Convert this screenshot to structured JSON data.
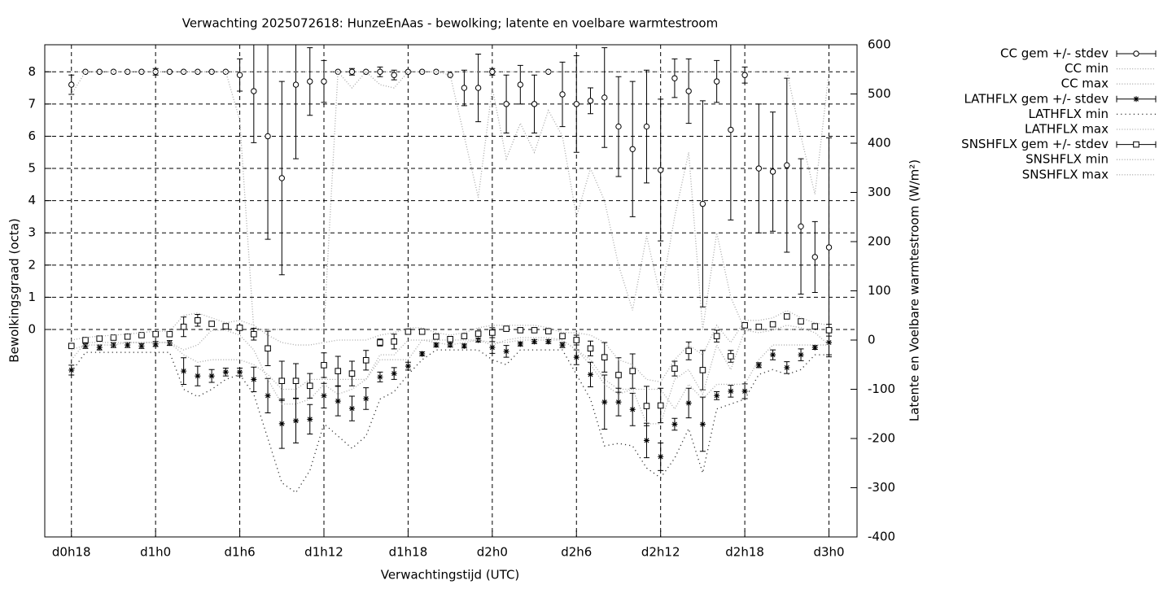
{
  "chart_data": {
    "type": "errorbar",
    "title": "Verwachting 2025072618: HunzeEnAas - bewolking; latente en voelbare warmtestroom",
    "xlabel": "Verwachtingstijd (UTC)",
    "ylabel": "Bewolkingsgraad (octa)",
    "y2label": "Latente en Voelbare warmtestroom (W/m²)",
    "grid": true,
    "legend": "outside-right",
    "xlim": [
      16.1,
      74
    ],
    "ylim": [
      -6.44,
      8.84
    ],
    "y2lim": [
      -400,
      600
    ],
    "xticks": [
      {
        "value": 18,
        "label": "d0h18"
      },
      {
        "value": 24,
        "label": "d1h0"
      },
      {
        "value": 30,
        "label": "d1h6"
      },
      {
        "value": 36,
        "label": "d1h12"
      },
      {
        "value": 42,
        "label": "d1h18"
      },
      {
        "value": 48,
        "label": "d2h0"
      },
      {
        "value": 54,
        "label": "d2h6"
      },
      {
        "value": 60,
        "label": "d2h12"
      },
      {
        "value": 66,
        "label": "d2h18"
      },
      {
        "value": 72,
        "label": "d3h0"
      }
    ],
    "yticks": [
      0,
      1,
      2,
      3,
      4,
      5,
      6,
      7,
      8
    ],
    "y2ticks": [
      -400,
      -300,
      -200,
      -100,
      0,
      100,
      200,
      300,
      400,
      500,
      600
    ],
    "x": [
      18,
      19,
      20,
      21,
      22,
      23,
      24,
      25,
      26,
      27,
      28,
      29,
      30,
      31,
      32,
      33,
      34,
      35,
      36,
      37,
      38,
      39,
      40,
      41,
      42,
      43,
      44,
      45,
      46,
      47,
      48,
      49,
      50,
      51,
      52,
      53,
      54,
      55,
      56,
      57,
      58,
      59,
      60,
      61,
      62,
      63,
      64,
      65,
      66,
      67,
      68,
      69,
      70,
      71,
      72
    ],
    "series": [
      {
        "name": "CC gem +/- stdev",
        "axis": "y",
        "style": "errorbar",
        "marker": "circle",
        "color": "#000000",
        "values": [
          7.6,
          8,
          8,
          8,
          8,
          8,
          8,
          8,
          8,
          8,
          8,
          8,
          7.9,
          7.4,
          6.0,
          4.7,
          7.6,
          7.7,
          7.7,
          8,
          8,
          8,
          8,
          7.9,
          8,
          8,
          8,
          7.9,
          7.5,
          7.5,
          8,
          7.0,
          7.6,
          7.0,
          8,
          7.3,
          7.0,
          7.1,
          7.2,
          6.3,
          5.6,
          6.3,
          4.95,
          7.8,
          7.4,
          3.9,
          7.7,
          6.2,
          7.9,
          5.0,
          4.9,
          5.1,
          3.2,
          2.25,
          2.55
        ],
        "errors": [
          0.3,
          0,
          0,
          0,
          0,
          0,
          0.1,
          0,
          0,
          0,
          0,
          0,
          0.5,
          1.6,
          3.2,
          3.0,
          2.3,
          1.05,
          0.65,
          0,
          0.1,
          0,
          0.15,
          0.15,
          0,
          0,
          0,
          0,
          0.55,
          1.05,
          0.1,
          0.9,
          0.6,
          0.9,
          0,
          1.0,
          1.5,
          0.4,
          1.55,
          1.55,
          2.1,
          1.75,
          2.2,
          0.6,
          1.0,
          3.2,
          0.65,
          2.8,
          0.25,
          2.0,
          1.85,
          2.7,
          2.1,
          1.1,
          3.4
        ]
      },
      {
        "name": "CC min",
        "axis": "y",
        "style": "dotted",
        "color": "#aaaaaa",
        "values": [
          7.3,
          8,
          8,
          8,
          8,
          8,
          8,
          8,
          8,
          8,
          8,
          8,
          6.5,
          0,
          0,
          0,
          0,
          0,
          0,
          8,
          7.5,
          8,
          7.6,
          7.5,
          8,
          8,
          8,
          7.9,
          6.0,
          4.1,
          7.5,
          5.3,
          6.4,
          5.5,
          6.8,
          6.0,
          3.5,
          5.0,
          4.0,
          2.0,
          0.6,
          2.9,
          1.0,
          3.5,
          5.5,
          0,
          3.0,
          1.0,
          0,
          0,
          0,
          0,
          0,
          0,
          0
        ]
      },
      {
        "name": "CC max",
        "axis": "y",
        "style": "dotted",
        "color": "#aaaaaa",
        "values": [
          8,
          8,
          8,
          8,
          8,
          8,
          8,
          8,
          8,
          8,
          8,
          8,
          8,
          8,
          8,
          8,
          8,
          8,
          8,
          8,
          8,
          8,
          8,
          8,
          8,
          8,
          8,
          8,
          8,
          8,
          8,
          8,
          8,
          8,
          8,
          8,
          8,
          8,
          8,
          8,
          8,
          8,
          8,
          8,
          8,
          8,
          8,
          8,
          8,
          8,
          8,
          8,
          6,
          4.2,
          8
        ]
      },
      {
        "name": "LATHFLX gem +/- stdev",
        "axis": "y2",
        "style": "errorbar",
        "marker": "star",
        "color": "#000000",
        "values": [
          -61,
          -12,
          -15,
          -10,
          -10,
          -12,
          -8,
          -6,
          -63,
          -73,
          -73,
          -65,
          -65,
          -80,
          -113,
          -170,
          -164,
          -161,
          -113,
          -124,
          -139,
          -119,
          -75,
          -68,
          -53,
          -28,
          -10,
          -10,
          -12,
          0,
          -15,
          -23,
          -8,
          -3,
          -3,
          -10,
          -35,
          -70,
          -126,
          -126,
          -141,
          -204,
          -237,
          -171,
          -128,
          -171,
          -113,
          -104,
          -104,
          -51,
          -30,
          -56,
          -30,
          -15,
          -5
        ],
        "errors": [
          10,
          5,
          5,
          5,
          5,
          5,
          5,
          5,
          27,
          20,
          13,
          8,
          8,
          25,
          35,
          50,
          45,
          30,
          25,
          30,
          25,
          22,
          10,
          12,
          8,
          4,
          4,
          4,
          4,
          4,
          12,
          12,
          4,
          4,
          4,
          5,
          15,
          25,
          55,
          28,
          33,
          35,
          28,
          12,
          30,
          55,
          8,
          12,
          15,
          5,
          10,
          12,
          12,
          4,
          25
        ]
      },
      {
        "name": "LATHFLX min",
        "axis": "y2",
        "style": "dotted",
        "color": "#333333",
        "values": [
          -65,
          -25,
          -25,
          -25,
          -25,
          -25,
          -25,
          -25,
          -100,
          -115,
          -100,
          -80,
          -70,
          -110,
          -200,
          -290,
          -310,
          -265,
          -170,
          -195,
          -220,
          -195,
          -120,
          -105,
          -70,
          -40,
          -20,
          -20,
          -20,
          -20,
          -40,
          -50,
          -20,
          -20,
          -20,
          -20,
          -70,
          -120,
          -215,
          -210,
          -215,
          -260,
          -280,
          -240,
          -180,
          -270,
          -140,
          -130,
          -120,
          -70,
          -60,
          -70,
          -60,
          -30,
          -30
        ]
      },
      {
        "name": "LATHFLX max",
        "axis": "y2",
        "style": "dotted",
        "color": "#aaaaaa",
        "values": [
          -40,
          -5,
          -5,
          -5,
          -5,
          -5,
          -5,
          -5,
          -30,
          -45,
          -40,
          -40,
          -40,
          -50,
          -70,
          -100,
          -100,
          -80,
          -80,
          -80,
          -80,
          -80,
          -40,
          -40,
          -40,
          0,
          0,
          0,
          0,
          0,
          -5,
          -5,
          0,
          0,
          0,
          0,
          -20,
          -40,
          -80,
          -100,
          -100,
          -100,
          -100,
          -140,
          -90,
          -120,
          -90,
          -90,
          -90,
          -40,
          -10,
          -10,
          -10,
          -10,
          -10
        ]
      },
      {
        "name": "SNSHFLX gem +/- stdev",
        "axis": "y2",
        "style": "errorbar",
        "marker": "square",
        "color": "#000000",
        "values": [
          -12,
          0,
          3,
          5,
          7,
          10,
          12,
          12,
          27,
          40,
          33,
          28,
          25,
          12,
          -17,
          -83,
          -83,
          -93,
          -51,
          -63,
          -68,
          -41,
          -5,
          -3,
          17,
          17,
          7,
          2,
          8,
          13,
          15,
          23,
          20,
          20,
          18,
          8,
          0,
          -17,
          -35,
          -71,
          -63,
          -134,
          -133,
          -58,
          -22,
          -61,
          8,
          -33,
          30,
          27,
          32,
          48,
          38,
          28,
          20
        ],
        "errors": [
          5,
          3,
          3,
          3,
          3,
          3,
          3,
          3,
          20,
          12,
          5,
          3,
          3,
          12,
          35,
          40,
          35,
          25,
          25,
          30,
          25,
          20,
          7,
          15,
          5,
          3,
          3,
          3,
          3,
          3,
          10,
          5,
          3,
          3,
          3,
          3,
          10,
          15,
          30,
          35,
          35,
          40,
          35,
          15,
          18,
          40,
          12,
          12,
          5,
          3,
          3,
          3,
          5,
          3,
          12
        ]
      },
      {
        "name": "SNSHFLX min",
        "axis": "y2",
        "style": "dotted",
        "color": "#aaaaaa",
        "values": [
          -20,
          -10,
          -10,
          -10,
          -5,
          -5,
          -5,
          -5,
          -20,
          -10,
          20,
          20,
          10,
          -20,
          -80,
          -130,
          -130,
          -120,
          -90,
          -110,
          -100,
          -80,
          -30,
          -30,
          0,
          0,
          -5,
          -10,
          -5,
          0,
          -10,
          0,
          5,
          5,
          5,
          0,
          -20,
          -50,
          -90,
          -110,
          -100,
          -170,
          -170,
          -80,
          -60,
          -110,
          -10,
          -60,
          20,
          15,
          20,
          30,
          25,
          15,
          -10
        ]
      },
      {
        "name": "SNSHFLX max",
        "axis": "y2",
        "style": "dotted",
        "color": "#aaaaaa",
        "values": [
          0,
          5,
          8,
          10,
          12,
          15,
          18,
          18,
          50,
          55,
          45,
          35,
          40,
          30,
          10,
          -5,
          -10,
          -10,
          -5,
          0,
          0,
          0,
          10,
          15,
          25,
          25,
          15,
          10,
          15,
          25,
          30,
          30,
          30,
          30,
          25,
          15,
          15,
          10,
          -5,
          -40,
          -50,
          -80,
          -85,
          -40,
          -10,
          -30,
          30,
          -5,
          40,
          40,
          45,
          60,
          45,
          35,
          30
        ]
      }
    ]
  }
}
